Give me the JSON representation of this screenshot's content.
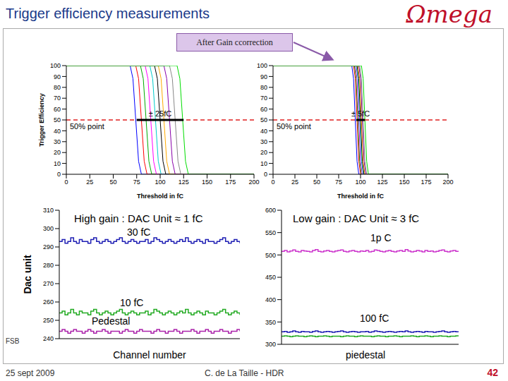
{
  "title": "Trigger efficiency measurements",
  "logo": "Ωmega",
  "banner": "After Gain ccorrection",
  "side_label": "FSB",
  "footer": {
    "date": "25 sept 2009",
    "author": "C. de La Taille - HDR",
    "page": 42
  },
  "chart_data": [
    {
      "type": "line",
      "x_label": "Threshold in fC",
      "y_label": "Trigger Efficiency",
      "xlim": [
        0,
        200
      ],
      "xticks": [
        0,
        25,
        50,
        75,
        100,
        125,
        150,
        175,
        200
      ],
      "ylim": [
        0,
        100
      ],
      "yticks": [
        0,
        10,
        20,
        30,
        40,
        50,
        60,
        70,
        80,
        90,
        100
      ],
      "annotations": [
        {
          "text": "50% point",
          "y": 50
        },
        {
          "text": "± 25fC",
          "x": [
            75,
            125
          ],
          "y": 50
        }
      ],
      "series": [
        {
          "color": "#0000ff",
          "x": [
            0,
            68,
            71,
            74,
            77,
            80,
            200
          ],
          "values": [
            100,
            100,
            88,
            50,
            12,
            0,
            0
          ]
        },
        {
          "color": "#ff0000",
          "x": [
            0,
            74,
            77,
            80,
            83,
            86,
            200
          ],
          "values": [
            100,
            100,
            88,
            50,
            12,
            0,
            0
          ]
        },
        {
          "color": "#00aa00",
          "x": [
            0,
            79,
            82,
            85,
            88,
            91,
            200
          ],
          "values": [
            100,
            100,
            88,
            50,
            12,
            0,
            0
          ]
        },
        {
          "color": "#ff00ff",
          "x": [
            0,
            84,
            87,
            90,
            93,
            96,
            200
          ],
          "values": [
            100,
            100,
            88,
            50,
            12,
            0,
            0
          ]
        },
        {
          "color": "#00cccc",
          "x": [
            0,
            89,
            92,
            95,
            98,
            101,
            200
          ],
          "values": [
            100,
            100,
            88,
            50,
            12,
            0,
            0
          ]
        },
        {
          "color": "#000000",
          "x": [
            0,
            94,
            97,
            100,
            103,
            106,
            200
          ],
          "values": [
            100,
            100,
            88,
            50,
            12,
            0,
            0
          ]
        },
        {
          "color": "#ffaa00",
          "x": [
            0,
            98,
            101,
            104,
            107,
            110,
            200
          ],
          "values": [
            100,
            100,
            88,
            50,
            12,
            0,
            0
          ]
        },
        {
          "color": "#8800aa",
          "x": [
            0,
            104,
            107,
            110,
            113,
            116,
            200
          ],
          "values": [
            100,
            100,
            88,
            50,
            12,
            0,
            0
          ]
        },
        {
          "color": "#888888",
          "x": [
            0,
            110,
            113,
            116,
            119,
            122,
            200
          ],
          "values": [
            100,
            100,
            88,
            50,
            12,
            0,
            0
          ]
        },
        {
          "color": "#00dd00",
          "x": [
            0,
            118,
            121,
            124,
            127,
            130,
            200
          ],
          "values": [
            100,
            100,
            88,
            50,
            12,
            0,
            0
          ]
        }
      ]
    },
    {
      "type": "line",
      "x_label": "Threshold in fC",
      "xlim": [
        0,
        200
      ],
      "xticks": [
        0,
        25,
        50,
        75,
        100,
        125,
        150,
        175,
        200
      ],
      "ylim": [
        0,
        100
      ],
      "yticks": [
        0,
        10,
        20,
        30,
        40,
        50,
        60,
        70,
        80,
        90,
        100
      ],
      "annotations": [
        {
          "text": "50% point",
          "y": 50
        },
        {
          "text": "± 5fC",
          "x": [
            95,
            105
          ],
          "y": 50
        }
      ],
      "series": [
        {
          "color": "#0000ff",
          "x": [
            0,
            90,
            92,
            94,
            96,
            98,
            200
          ],
          "values": [
            100,
            100,
            88,
            50,
            12,
            0,
            0
          ]
        },
        {
          "color": "#ff0000",
          "x": [
            0,
            92,
            94,
            96,
            98,
            100,
            200
          ],
          "values": [
            100,
            100,
            88,
            50,
            12,
            0,
            0
          ]
        },
        {
          "color": "#00aa00",
          "x": [
            0,
            93,
            95,
            97,
            99,
            101,
            200
          ],
          "values": [
            100,
            100,
            88,
            50,
            12,
            0,
            0
          ]
        },
        {
          "color": "#ff00ff",
          "x": [
            0,
            94,
            96,
            98,
            100,
            102,
            200
          ],
          "values": [
            100,
            100,
            88,
            50,
            12,
            0,
            0
          ]
        },
        {
          "color": "#00cccc",
          "x": [
            0,
            95,
            97,
            99,
            101,
            103,
            200
          ],
          "values": [
            100,
            100,
            88,
            50,
            12,
            0,
            0
          ]
        },
        {
          "color": "#000000",
          "x": [
            0,
            96,
            98,
            100,
            102,
            104,
            200
          ],
          "values": [
            100,
            100,
            88,
            50,
            12,
            0,
            0
          ]
        },
        {
          "color": "#ffaa00",
          "x": [
            0,
            97,
            99,
            101,
            103,
            105,
            200
          ],
          "values": [
            100,
            100,
            88,
            50,
            12,
            0,
            0
          ]
        },
        {
          "color": "#8800aa",
          "x": [
            0,
            98,
            100,
            102,
            104,
            106,
            200
          ],
          "values": [
            100,
            100,
            88,
            50,
            12,
            0,
            0
          ]
        },
        {
          "color": "#888888",
          "x": [
            0,
            99,
            101,
            103,
            105,
            107,
            200
          ],
          "values": [
            100,
            100,
            88,
            50,
            12,
            0,
            0
          ]
        },
        {
          "color": "#00dd00",
          "x": [
            0,
            101,
            103,
            105,
            107,
            109,
            200
          ],
          "values": [
            100,
            100,
            88,
            50,
            12,
            0,
            0
          ]
        }
      ]
    },
    {
      "type": "line",
      "title": "High gain : DAC Unit ≈ 1 fC",
      "x_label": "Channel number",
      "y_label": "Dac unit",
      "tick_labels": "y",
      "xlim": [
        0,
        63
      ],
      "ylim": [
        240,
        310
      ],
      "yticks": [
        240,
        250,
        260,
        270,
        280,
        290,
        300,
        310
      ],
      "x": [
        0,
        1,
        2,
        3,
        4,
        5,
        6,
        7,
        8,
        9,
        10,
        11,
        12,
        13,
        14,
        15,
        16,
        17,
        18,
        19,
        20,
        21,
        22,
        23,
        24,
        25,
        26,
        27,
        28,
        29,
        30,
        31,
        32,
        33,
        34,
        35,
        36,
        37,
        38,
        39,
        40,
        41,
        42,
        43,
        44,
        45,
        46,
        47,
        48,
        49,
        50,
        51,
        52,
        53,
        54,
        55,
        56,
        57,
        58,
        59,
        60,
        61,
        62,
        63
      ],
      "series": [
        {
          "name": "30 fC",
          "color": "#1f1fb4",
          "values": [
            293,
            294,
            292,
            293,
            295,
            293,
            292,
            294,
            293,
            293,
            292,
            294,
            295,
            293,
            292,
            293,
            294,
            293,
            292,
            293,
            294,
            295,
            293,
            292,
            293,
            294,
            293,
            292,
            293,
            293,
            294,
            292,
            293,
            295,
            294,
            293,
            292,
            293,
            294,
            293,
            292,
            293,
            294,
            293,
            295,
            293,
            292,
            293,
            294,
            293,
            292,
            294,
            293,
            293,
            292,
            293,
            294,
            295,
            293,
            292,
            293,
            294,
            293,
            292
          ]
        },
        {
          "name": "10 fC",
          "color": "#22aa22",
          "values": [
            254,
            255,
            253,
            254,
            256,
            254,
            253,
            255,
            254,
            254,
            253,
            255,
            256,
            254,
            253,
            254,
            255,
            254,
            253,
            254,
            255,
            256,
            254,
            253,
            254,
            255,
            254,
            253,
            254,
            254,
            255,
            253,
            254,
            256,
            255,
            254,
            253,
            254,
            255,
            254,
            253,
            254,
            255,
            254,
            256,
            254,
            253,
            254,
            255,
            254,
            253,
            255,
            254,
            254,
            253,
            254,
            255,
            256,
            254,
            253,
            254,
            255,
            254,
            253
          ]
        },
        {
          "name": "Pedestal",
          "color": "#aa22aa",
          "values": [
            244,
            245,
            244,
            243,
            244,
            245,
            244,
            244,
            243,
            244,
            245,
            244,
            243,
            244,
            244,
            245,
            244,
            243,
            244,
            244,
            244,
            243,
            244,
            245,
            244,
            244,
            243,
            244,
            245,
            244,
            244,
            244,
            243,
            244,
            245,
            244,
            244,
            243,
            244,
            244,
            245,
            244,
            243,
            244,
            244,
            244,
            245,
            244,
            243,
            244,
            244,
            245,
            244,
            243,
            244,
            244,
            245,
            244,
            244,
            243,
            244,
            244,
            245,
            244
          ]
        }
      ]
    },
    {
      "type": "line",
      "title": "Low gain : DAC Unit ≈ 3 fC",
      "tick_labels": "y",
      "xlim": [
        0,
        63
      ],
      "ylim": [
        300,
        600
      ],
      "yticks": [
        300,
        350,
        400,
        450,
        500,
        550,
        600
      ],
      "x": [
        0,
        1,
        2,
        3,
        4,
        5,
        6,
        7,
        8,
        9,
        10,
        11,
        12,
        13,
        14,
        15,
        16,
        17,
        18,
        19,
        20,
        21,
        22,
        23,
        24,
        25,
        26,
        27,
        28,
        29,
        30,
        31,
        32,
        33,
        34,
        35,
        36,
        37,
        38,
        39,
        40,
        41,
        42,
        43,
        44,
        45,
        46,
        47,
        48,
        49,
        50,
        51,
        52,
        53,
        54,
        55,
        56,
        57,
        58,
        59,
        60,
        61,
        62,
        63
      ],
      "series": [
        {
          "name": "1p C",
          "color": "#cc33cc",
          "values": [
            508,
            510,
            507,
            509,
            511,
            508,
            507,
            510,
            509,
            508,
            507,
            510,
            512,
            508,
            507,
            509,
            510,
            508,
            507,
            509,
            510,
            511,
            508,
            507,
            509,
            510,
            508,
            507,
            509,
            508,
            510,
            507,
            508,
            511,
            510,
            508,
            507,
            509,
            510,
            508,
            507,
            509,
            510,
            508,
            512,
            509,
            507,
            508,
            510,
            509,
            507,
            510,
            508,
            509,
            507,
            508,
            510,
            511,
            508,
            507,
            509,
            510,
            508,
            507
          ]
        },
        {
          "name": "100 fC",
          "color": "#1f1fb4",
          "values": [
            328,
            329,
            327,
            328,
            330,
            328,
            327,
            329,
            328,
            328,
            327,
            329,
            330,
            328,
            327,
            328,
            329,
            328,
            327,
            328,
            329,
            330,
            328,
            327,
            328,
            329,
            328,
            327,
            328,
            328,
            329,
            327,
            328,
            330,
            329,
            328,
            327,
            328,
            329,
            328,
            327,
            328,
            329,
            328,
            330,
            328,
            327,
            328,
            329,
            328,
            327,
            329,
            328,
            328,
            327,
            328,
            329,
            330,
            328,
            327,
            328,
            329,
            328,
            327
          ]
        },
        {
          "name": "piedestal",
          "color": "#22aa22",
          "values": [
            318,
            319,
            318,
            317,
            318,
            319,
            318,
            318,
            317,
            318,
            319,
            318,
            317,
            318,
            318,
            319,
            318,
            317,
            318,
            318,
            318,
            317,
            318,
            319,
            318,
            318,
            317,
            318,
            319,
            318,
            318,
            318,
            317,
            318,
            319,
            318,
            318,
            317,
            318,
            318,
            319,
            318,
            317,
            318,
            318,
            318,
            319,
            318,
            317,
            318,
            318,
            319,
            318,
            317,
            318,
            318,
            319,
            318,
            318,
            317,
            318,
            318,
            319,
            318
          ]
        }
      ]
    }
  ]
}
